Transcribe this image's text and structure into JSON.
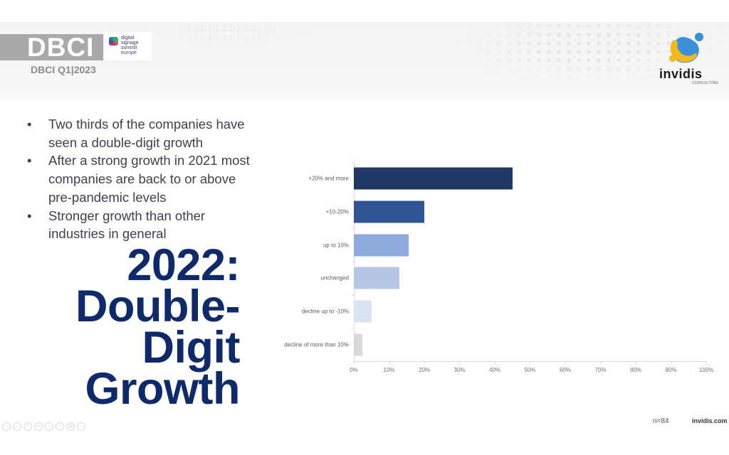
{
  "header": {
    "brand": "DBCI",
    "subtitle": "DBCI Q1|2023",
    "partner_logo": {
      "lines": [
        "digital",
        "signage",
        "summit",
        "europe"
      ]
    },
    "company_logo": {
      "word": "invidis",
      "tagline": "CONSULTING"
    }
  },
  "bullets": [
    {
      "symbol": "•",
      "text": "Two thirds of the companies have seen a double-digit growth"
    },
    {
      "symbol": "•",
      "text": "After a strong growth in 2021 most companies are back to or above pre-pandemic levels"
    },
    {
      "symbol": "•",
      "text": "Stronger growth than other industries in general"
    }
  ],
  "title_lines": [
    "2022:",
    "Double-",
    "Digit",
    "Growth"
  ],
  "colors": {
    "title": "#0f2a6b",
    "bars": [
      "#203864",
      "#2f5597",
      "#8faadc",
      "#b4c7e7",
      "#dae3f3",
      "#d9d9d9"
    ]
  },
  "chart_data": {
    "type": "bar",
    "orientation": "horizontal",
    "title": "",
    "categories": [
      "+20% and more",
      "+10-20%",
      "up to 10%",
      "unchanged",
      "decline up to -10%",
      "decline of more than 10%"
    ],
    "values": [
      45,
      20,
      15.5,
      13,
      5,
      2.5
    ],
    "xlabel": "",
    "ylabel": "",
    "xlim": [
      0,
      100
    ],
    "x_ticks": [
      "0%",
      "10%",
      "20%",
      "30%",
      "40%",
      "50%",
      "60%",
      "70%",
      "80%",
      "90%",
      "100%"
    ],
    "grid": false,
    "legend": null,
    "unit": "%"
  },
  "footer": {
    "sample": "n=84",
    "url": "invidis.com"
  },
  "controls": [
    "prev",
    "next",
    "pen",
    "pointer",
    "zoom",
    "subtitles",
    "view",
    "more"
  ]
}
